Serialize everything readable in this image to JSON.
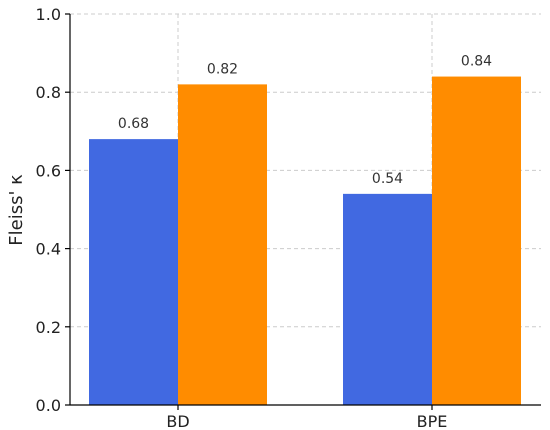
{
  "chart_data": {
    "type": "bar",
    "title": "",
    "xlabel": "",
    "ylabel": "Fleiss' κ",
    "categories": [
      "BD",
      "BPE"
    ],
    "series": [
      {
        "color": "#4169e1",
        "values": [
          0.68,
          0.54
        ]
      },
      {
        "color": "#ff8c00",
        "values": [
          0.82,
          0.84
        ]
      }
    ],
    "data_labels": [
      [
        "0.68",
        "0.54"
      ],
      [
        "0.82",
        "0.84"
      ]
    ],
    "ylim": [
      0,
      1.0
    ],
    "yticks": [
      0.0,
      0.2,
      0.4,
      0.6,
      0.8,
      1.0
    ],
    "ytick_labels": [
      "0.0",
      "0.2",
      "0.4",
      "0.6",
      "0.8",
      "1.0"
    ],
    "grid": true,
    "legend": "none"
  }
}
